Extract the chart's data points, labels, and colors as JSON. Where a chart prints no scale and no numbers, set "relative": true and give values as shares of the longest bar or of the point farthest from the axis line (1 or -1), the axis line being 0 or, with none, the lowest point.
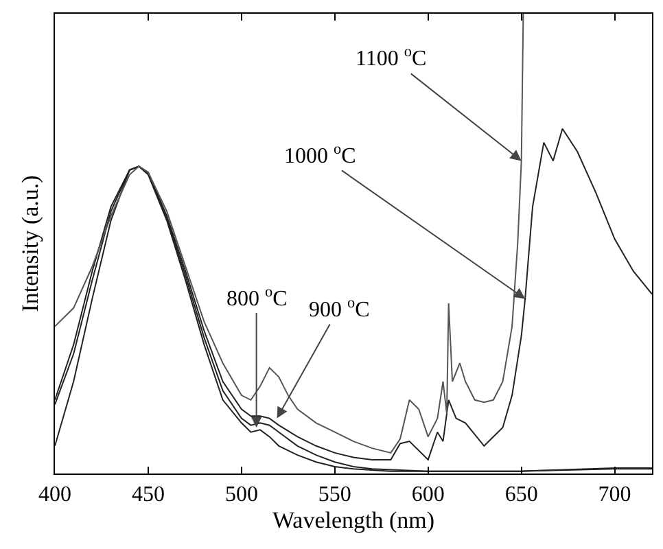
{
  "chart_data": {
    "type": "line",
    "xlabel": "Wavelength (nm)",
    "ylabel": "Intensity (a.u.)",
    "relative": true,
    "xlim": [
      400,
      720
    ],
    "xticks": [
      400,
      450,
      500,
      550,
      600,
      650,
      700
    ],
    "grid": false,
    "marker": "none",
    "line_style": "solid",
    "series": [
      {
        "color": "#222222",
        "x": [
          400,
          410,
          420,
          430,
          440,
          445,
          450,
          460,
          470,
          480,
          490,
          500,
          505,
          510,
          515,
          520,
          530,
          540,
          550,
          560,
          580,
          600,
          650,
          700,
          720
        ],
        "values": [
          0.06,
          0.2,
          0.38,
          0.55,
          0.66,
          0.668,
          0.65,
          0.55,
          0.42,
          0.28,
          0.16,
          0.11,
          0.09,
          0.095,
          0.08,
          0.06,
          0.04,
          0.025,
          0.015,
          0.01,
          0.005,
          0.005,
          0.005,
          0.01,
          0.01
        ]
      },
      {
        "color": "#222222",
        "x": [
          400,
          410,
          420,
          430,
          440,
          445,
          450,
          460,
          470,
          480,
          490,
          500,
          505,
          510,
          515,
          520,
          530,
          540,
          550,
          560,
          570,
          600,
          650,
          700,
          720
        ],
        "values": [
          0.15,
          0.26,
          0.42,
          0.57,
          0.66,
          0.668,
          0.652,
          0.555,
          0.43,
          0.295,
          0.18,
          0.12,
          0.105,
          0.11,
          0.105,
          0.09,
          0.06,
          0.04,
          0.025,
          0.015,
          0.01,
          0.005,
          0.005,
          0.012,
          0.012
        ]
      },
      {
        "color": "#222222",
        "x": [
          400,
          410,
          420,
          430,
          440,
          445,
          450,
          460,
          470,
          480,
          490,
          500,
          505,
          510,
          515,
          520,
          530,
          540,
          550,
          560,
          570,
          580,
          585,
          590,
          600,
          605,
          608,
          611,
          615,
          620,
          630,
          640,
          645,
          650,
          652,
          656,
          662,
          667,
          672,
          680,
          690,
          700,
          710,
          720
        ],
        "values": [
          0.16,
          0.28,
          0.44,
          0.58,
          0.66,
          0.668,
          0.655,
          0.56,
          0.44,
          0.31,
          0.2,
          0.14,
          0.125,
          0.125,
          0.12,
          0.105,
          0.08,
          0.06,
          0.045,
          0.035,
          0.03,
          0.03,
          0.065,
          0.07,
          0.03,
          0.09,
          0.07,
          0.16,
          0.12,
          0.11,
          0.06,
          0.1,
          0.17,
          0.3,
          0.38,
          0.58,
          0.72,
          0.68,
          0.75,
          0.7,
          0.61,
          0.51,
          0.44,
          0.39
        ]
      },
      {
        "color": "#555555",
        "x": [
          400,
          410,
          420,
          430,
          440,
          445,
          450,
          460,
          470,
          480,
          490,
          500,
          505,
          510,
          515,
          520,
          525,
          530,
          540,
          550,
          560,
          570,
          580,
          585,
          590,
          595,
          600,
          605,
          608,
          610,
          611,
          613,
          617,
          620,
          625,
          630,
          635,
          640,
          645,
          648,
          650,
          651
        ],
        "values": [
          0.32,
          0.36,
          0.45,
          0.56,
          0.65,
          0.668,
          0.655,
          0.57,
          0.45,
          0.33,
          0.24,
          0.17,
          0.16,
          0.19,
          0.23,
          0.21,
          0.17,
          0.14,
          0.11,
          0.09,
          0.07,
          0.055,
          0.045,
          0.075,
          0.16,
          0.14,
          0.08,
          0.12,
          0.2,
          0.13,
          0.37,
          0.2,
          0.24,
          0.2,
          0.16,
          0.155,
          0.16,
          0.2,
          0.32,
          0.5,
          0.68,
          1.0
        ]
      }
    ],
    "annotations": [
      {
        "text": "800 $^{o}$C",
        "x": 508,
        "y": 0.1
      },
      {
        "text": "900 $^{o}$C",
        "x": 519,
        "y": 0.12
      },
      {
        "text": "1000 $^{o}$C",
        "x": 652,
        "y": 0.38
      },
      {
        "text": "1100 $^{o}$C",
        "x": 650,
        "y": 0.68
      }
    ]
  }
}
